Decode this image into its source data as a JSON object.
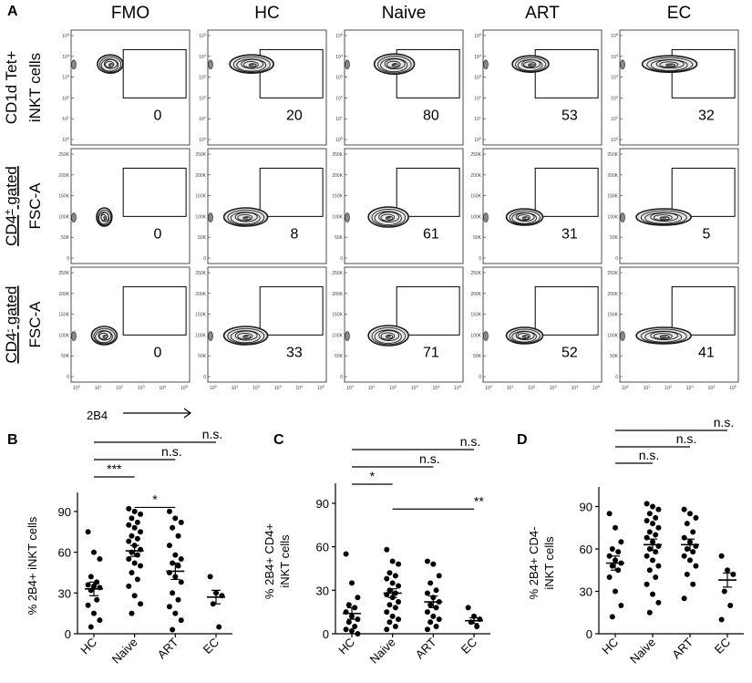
{
  "chart_data": [
    {
      "type": "flow-cytometry-contour-grid",
      "panel": "A",
      "columns": [
        "FMO",
        "HC",
        "Naive",
        "ART",
        "EC"
      ],
      "rows": [
        {
          "label_line1": "CD1d Tet+",
          "label_line2": "iNKT cells",
          "gated": "",
          "y_ticks": [
            "10^0",
            "10^1",
            "10^2",
            "10^3",
            "10^4",
            "10^5"
          ],
          "values": [
            0,
            20,
            80,
            53,
            32
          ]
        },
        {
          "label_line1": "CD4",
          "label_sup": "+",
          "label_line1_suffix": " gated",
          "label_line2": "FSC-A",
          "y_ticks": [
            "0",
            "50K",
            "100K",
            "150K",
            "200K",
            "250K"
          ],
          "values": [
            0,
            8,
            61,
            31,
            5
          ]
        },
        {
          "label_line1": "CD4",
          "label_sup": "-",
          "label_line1_suffix": " gated",
          "label_line2": "FSC-A",
          "y_ticks": [
            "0",
            "50K",
            "100K",
            "150K",
            "200K",
            "250K"
          ],
          "values": [
            0,
            33,
            71,
            52,
            41
          ]
        }
      ],
      "x_ticks": [
        "10^0",
        "10^1",
        "10^2",
        "10^3",
        "10^4",
        "10^5"
      ],
      "x_label": "2B4"
    },
    {
      "type": "scatter",
      "panel": "B",
      "ylabel": "% 2B4+ iNKT cells",
      "yticks": [
        0,
        30,
        60,
        90
      ],
      "ylim": [
        0,
        100
      ],
      "categories": [
        "HC",
        "Naive",
        "ART",
        "EC"
      ],
      "means": [
        33,
        61,
        46,
        27
      ],
      "sem": [
        5,
        4,
        6,
        5
      ],
      "points": [
        [
          75,
          60,
          55,
          42,
          38,
          36,
          35,
          34,
          32,
          25,
          21,
          15,
          10,
          5
        ],
        [
          92,
          90,
          88,
          85,
          82,
          80,
          78,
          75,
          72,
          70,
          68,
          65,
          62,
          60,
          58,
          55,
          52,
          50,
          45,
          40,
          35,
          28,
          22,
          15
        ],
        [
          90,
          85,
          82,
          78,
          72,
          65,
          58,
          55,
          52,
          50,
          45,
          42,
          38,
          30,
          25,
          20,
          15,
          10,
          3
        ],
        [
          42,
          30,
          28,
          22,
          5
        ]
      ],
      "comparisons": [
        {
          "from": "HC",
          "to": "EC",
          "label": "n.s."
        },
        {
          "from": "HC",
          "to": "ART",
          "label": "n.s."
        },
        {
          "from": "HC",
          "to": "Naive",
          "label": "***"
        },
        {
          "from": "Naive",
          "to": "ART",
          "label": "*"
        }
      ]
    },
    {
      "type": "scatter",
      "panel": "C",
      "ylabel_line1": "% 2B4+ CD4+",
      "ylabel_line2": "iNKT cells",
      "yticks": [
        0,
        30,
        60,
        90
      ],
      "ylim": [
        0,
        100
      ],
      "categories": [
        "HC",
        "Naive",
        "ART",
        "EC"
      ],
      "means": [
        14,
        28,
        22,
        9
      ],
      "sem": [
        4,
        3,
        4,
        2
      ],
      "points": [
        [
          55,
          35,
          25,
          20,
          18,
          15,
          12,
          10,
          8,
          5,
          3,
          2,
          0
        ],
        [
          58,
          50,
          48,
          42,
          40,
          38,
          35,
          33,
          30,
          28,
          27,
          25,
          22,
          20,
          18,
          15,
          12,
          10,
          8,
          5,
          3
        ],
        [
          50,
          48,
          40,
          35,
          30,
          28,
          25,
          22,
          20,
          18,
          15,
          12,
          10,
          8,
          5,
          3
        ],
        [
          18,
          12,
          10,
          8,
          5
        ]
      ],
      "comparisons": [
        {
          "from": "HC",
          "to": "EC",
          "label": "n.s."
        },
        {
          "from": "HC",
          "to": "ART",
          "label": "n.s."
        },
        {
          "from": "HC",
          "to": "Naive",
          "label": "*"
        },
        {
          "from": "Naive",
          "to": "EC",
          "label": "**"
        }
      ]
    },
    {
      "type": "scatter",
      "panel": "D",
      "ylabel_line1": "% 2B4+ CD4-",
      "ylabel_line2": "iNKT cells",
      "yticks": [
        0,
        30,
        60,
        90
      ],
      "ylim": [
        0,
        100
      ],
      "categories": [
        "HC",
        "Naive",
        "ART",
        "EC"
      ],
      "means": [
        50,
        63,
        63,
        38
      ],
      "sem": [
        5,
        4,
        4,
        5
      ],
      "points": [
        [
          85,
          75,
          65,
          60,
          58,
          55,
          52,
          50,
          48,
          45,
          40,
          30,
          20,
          12
        ],
        [
          92,
          90,
          88,
          85,
          82,
          80,
          78,
          75,
          72,
          70,
          68,
          65,
          62,
          60,
          58,
          55,
          52,
          48,
          45,
          40,
          35,
          28,
          22,
          15
        ],
        [
          88,
          85,
          82,
          78,
          72,
          68,
          65,
          62,
          60,
          58,
          55,
          52,
          48,
          42,
          35,
          25
        ],
        [
          55,
          45,
          42,
          30,
          20,
          10
        ]
      ],
      "comparisons": [
        {
          "from": "HC",
          "to": "EC",
          "label": "n.s."
        },
        {
          "from": "HC",
          "to": "ART",
          "label": "n.s."
        },
        {
          "from": "HC",
          "to": "Naive",
          "label": "n.s."
        }
      ]
    }
  ]
}
